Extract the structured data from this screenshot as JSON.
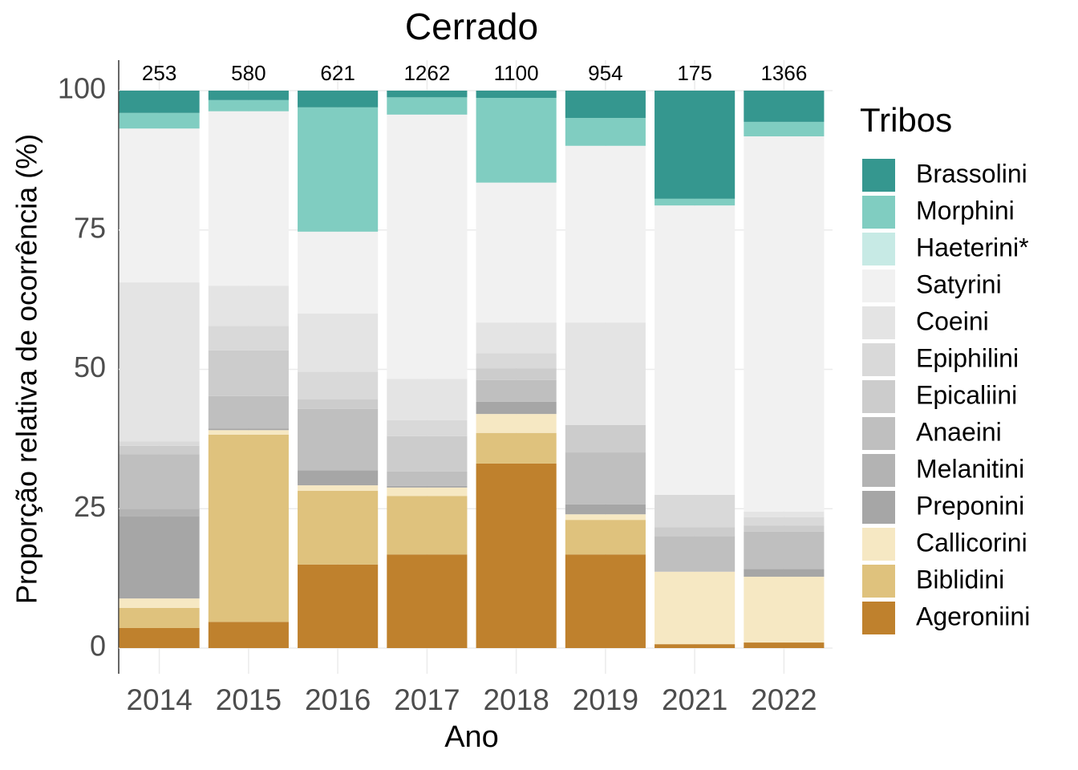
{
  "chart_data": {
    "type": "stacked-bar",
    "title": "Cerrado",
    "x_label": "Ano",
    "y_label": "Proporção relativa de ocorrência (%)",
    "legend_title": "Tribos",
    "legend_position": "right",
    "grid": true,
    "categories": [
      "2014",
      "2015",
      "2016",
      "2017",
      "2018",
      "2019",
      "2021",
      "2022"
    ],
    "n": [
      253,
      580,
      621,
      1262,
      1100,
      954,
      175,
      1366
    ],
    "ylim": [
      0,
      100
    ],
    "yticks": [
      0,
      25,
      50,
      75,
      100
    ],
    "series": [
      {
        "name": "Brassolini",
        "color": "#35978f",
        "values": [
          4.0,
          1.7,
          3.0,
          1.2,
          1.3,
          4.9,
          19.4,
          5.6
        ]
      },
      {
        "name": "Morphini",
        "color": "#80cdc1",
        "values": [
          2.8,
          2.0,
          22.3,
          3.1,
          15.2,
          5.0,
          1.2,
          2.6
        ]
      },
      {
        "name": "Haeterini*",
        "color": "#c7eae5",
        "values": [
          0,
          0,
          0,
          0,
          0,
          0,
          0,
          0
        ]
      },
      {
        "name": "Satyrini",
        "color": "#f1f1f1",
        "values": [
          27.6,
          31.3,
          14.7,
          47.4,
          25.1,
          31.7,
          51.9,
          67.3
        ]
      },
      {
        "name": "Coeini",
        "color": "#e4e4e4",
        "values": [
          28.5,
          7.2,
          10.4,
          7.4,
          5.5,
          18.4,
          0,
          1.0
        ]
      },
      {
        "name": "Epiphilini",
        "color": "#d9d9d9",
        "values": [
          0.8,
          4.4,
          5.0,
          2.9,
          2.7,
          0,
          5.8,
          1.5
        ]
      },
      {
        "name": "Epicaliini",
        "color": "#cccccc",
        "values": [
          1.5,
          8.2,
          1.7,
          6.3,
          2.1,
          4.9,
          1.6,
          1.1
        ]
      },
      {
        "name": "Anaeini",
        "color": "#bfbfbf",
        "values": [
          9.8,
          5.8,
          11.0,
          2.6,
          3.9,
          9.3,
          6.4,
          6.7
        ]
      },
      {
        "name": "Melanitini",
        "color": "#b3b3b3",
        "values": [
          1.3,
          0,
          0,
          0,
          0,
          0,
          0,
          0
        ]
      },
      {
        "name": "Preponini",
        "color": "#a6a6a6",
        "values": [
          14.8,
          0.3,
          2.7,
          0.3,
          2.2,
          1.8,
          0,
          1.4
        ]
      },
      {
        "name": "Callicorini",
        "color": "#f6e8c3",
        "values": [
          1.7,
          0.8,
          1.0,
          1.5,
          3.4,
          1.0,
          13.0,
          11.8
        ]
      },
      {
        "name": "Biblidini",
        "color": "#dfc27d",
        "values": [
          3.6,
          33.6,
          13.2,
          10.5,
          5.5,
          6.2,
          0,
          0
        ]
      },
      {
        "name": "Ageroniini",
        "color": "#bf812d",
        "values": [
          3.6,
          4.7,
          15.0,
          16.8,
          33.1,
          16.8,
          0.7,
          1.0
        ]
      }
    ]
  }
}
